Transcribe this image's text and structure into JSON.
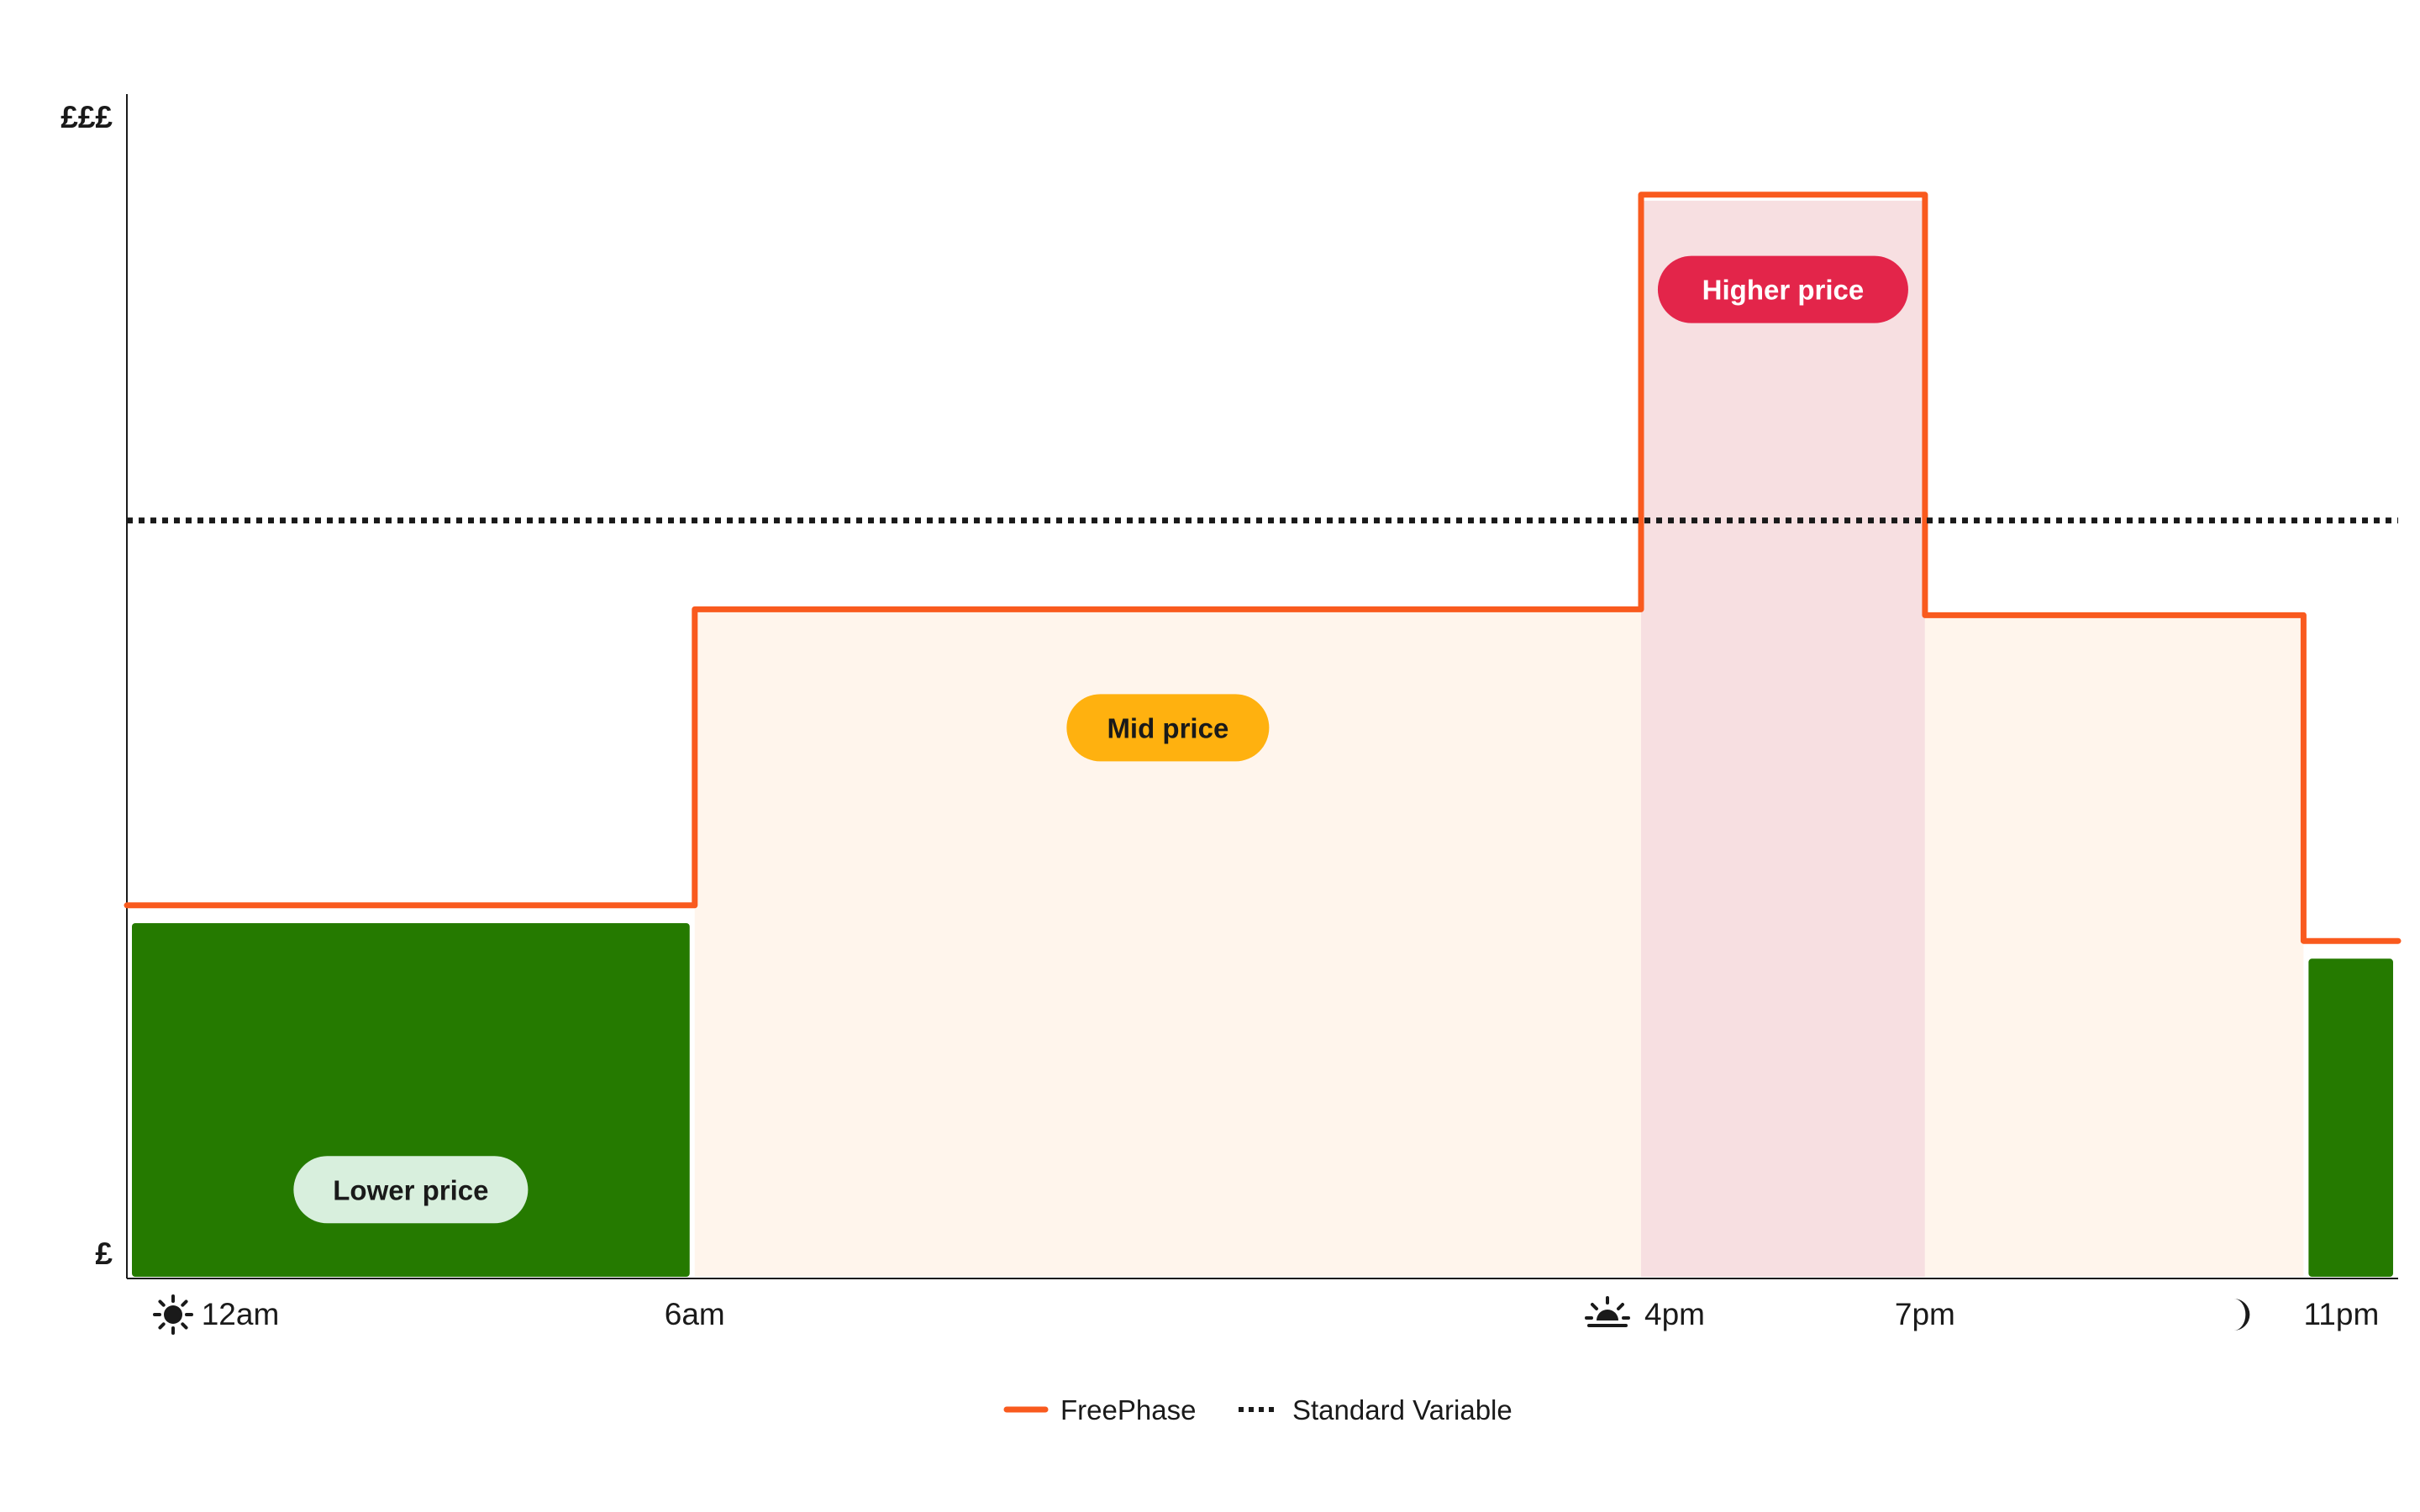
{
  "chart_data": {
    "type": "line",
    "title": "",
    "xlabel": "",
    "ylabel": "",
    "y_axis_labels": {
      "top": "£££",
      "bottom": "£"
    },
    "x_ticks": [
      {
        "label": "12am",
        "hour": 0,
        "icon": "sun-icon"
      },
      {
        "label": "6am",
        "hour": 6,
        "icon": ""
      },
      {
        "label": "4pm",
        "hour": 16,
        "icon": "sunset-icon"
      },
      {
        "label": "7pm",
        "hour": 19,
        "icon": ""
      },
      {
        "label": "11pm",
        "hour": 23,
        "icon": "moon-icon"
      }
    ],
    "xlim": [
      0,
      24
    ],
    "ylim": [
      0,
      100
    ],
    "series": [
      {
        "name": "FreePhase",
        "color": "#f95a1e",
        "style": "solid",
        "points": [
          {
            "x": 0,
            "y": 31.5
          },
          {
            "x": 6,
            "y": 31.5
          },
          {
            "x": 6,
            "y": 56.5
          },
          {
            "x": 16,
            "y": 56.5
          },
          {
            "x": 16,
            "y": 91.5
          },
          {
            "x": 19,
            "y": 91.5
          },
          {
            "x": 19,
            "y": 56
          },
          {
            "x": 23,
            "y": 56
          },
          {
            "x": 23,
            "y": 28.5
          },
          {
            "x": 24,
            "y": 28.5
          }
        ]
      },
      {
        "name": "Standard Variable",
        "color": "#1a1a1a",
        "style": "dotted",
        "points": [
          {
            "x": 0,
            "y": 64
          },
          {
            "x": 24,
            "y": 64
          }
        ]
      }
    ],
    "bands": [
      {
        "label": "Lower price",
        "from": 0,
        "to": 6,
        "height": 30,
        "color": "#257a00",
        "pill_bg": "#d8efdd",
        "pill_fg": "#1a1a1a",
        "pill_y": 7.5
      },
      {
        "label": "Mid price",
        "from": 6,
        "to": 16,
        "height": 56.5,
        "color": "#fff5ec",
        "pill_bg": "#ffb10f",
        "pill_fg": "#1a1a1a",
        "pill_y": 46.5
      },
      {
        "label": "Higher price",
        "from": 16,
        "to": 19,
        "height": 91,
        "color": "#f7dfe1",
        "pill_bg": "#e3254a",
        "pill_fg": "#ffffff",
        "pill_y": 83.5
      },
      {
        "label": "",
        "from": 19,
        "to": 23,
        "height": 56,
        "color": "#fff5ec"
      },
      {
        "label": "",
        "from": 23,
        "to": 24,
        "height": 27,
        "color": "#257a00"
      }
    ],
    "legend": {
      "placement": "bottom-center",
      "items": [
        {
          "name": "FreePhase",
          "style": "solid",
          "color": "#f95a1e"
        },
        {
          "name": "Standard Variable",
          "style": "dotted",
          "color": "#1a1a1a"
        }
      ]
    },
    "grid": false
  }
}
